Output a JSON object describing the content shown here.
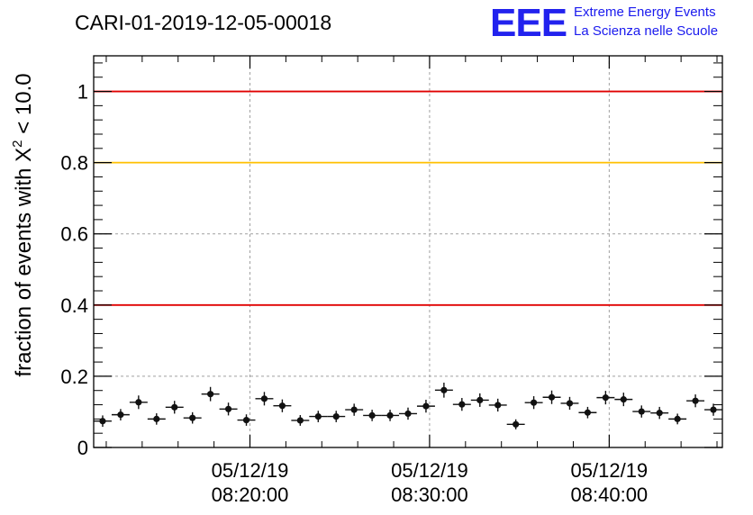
{
  "colors": {
    "red_line": "#e00000",
    "yellow_line": "#ffc000",
    "grid": "#a0a0a0",
    "marker": "#111111",
    "logo": "#2222ee"
  },
  "logo": {
    "mark": "EEE",
    "line1": "Extreme Energy Events",
    "line2": "La Scienza nelle Scuole"
  },
  "chart_data": {
    "type": "scatter",
    "title": "CARI-01-2019-12-05-00018",
    "ylabel_parts": {
      "prefix": "fraction of events with ",
      "chi": "X",
      "exponent": "2",
      "suffix": " < 10.0"
    },
    "xlabel": "",
    "ylim": [
      0,
      1.1
    ],
    "yticks": [
      0,
      0.2,
      0.4,
      0.6,
      0.8,
      1
    ],
    "ytick_labels": [
      "0",
      "0.2",
      "0.4",
      "0.6",
      "0.8",
      "1"
    ],
    "x_range_minutes": [
      11.3,
      46.3
    ],
    "x_ticks": [
      {
        "minutes": 20,
        "date": "05/12/19",
        "time": "08:20:00"
      },
      {
        "minutes": 30,
        "date": "05/12/19",
        "time": "08:30:00"
      },
      {
        "minutes": 40,
        "date": "05/12/19",
        "time": "08:40:00"
      }
    ],
    "x_unit": "minutes after 08:00:00 on 05/12/19",
    "reference_lines": [
      {
        "y": 1.0,
        "color": "red"
      },
      {
        "y": 0.8,
        "color": "yellow"
      },
      {
        "y": 0.4,
        "color": "red"
      }
    ],
    "grid": true,
    "bin_width_minutes": 1.0,
    "series": [
      {
        "name": "fraction",
        "x": [
          11.8,
          12.8,
          13.8,
          14.8,
          15.8,
          16.8,
          17.8,
          18.8,
          19.8,
          20.8,
          21.8,
          22.8,
          23.8,
          24.8,
          25.8,
          26.8,
          27.8,
          28.8,
          29.8,
          30.8,
          31.8,
          32.8,
          33.8,
          34.8,
          35.8,
          36.8,
          37.8,
          38.8,
          39.8,
          40.8,
          41.8,
          42.8,
          43.8,
          44.8,
          45.8
        ],
        "y": [
          0.074,
          0.092,
          0.127,
          0.08,
          0.113,
          0.083,
          0.15,
          0.108,
          0.077,
          0.137,
          0.117,
          0.076,
          0.087,
          0.087,
          0.106,
          0.09,
          0.09,
          0.095,
          0.116,
          0.161,
          0.121,
          0.133,
          0.119,
          0.065,
          0.126,
          0.141,
          0.124,
          0.098,
          0.14,
          0.135,
          0.101,
          0.097,
          0.08,
          0.131,
          0.106
        ],
        "err": [
          0.016,
          0.016,
          0.019,
          0.016,
          0.018,
          0.016,
          0.02,
          0.018,
          0.016,
          0.019,
          0.018,
          0.015,
          0.016,
          0.016,
          0.017,
          0.016,
          0.016,
          0.017,
          0.018,
          0.021,
          0.018,
          0.019,
          0.018,
          0.014,
          0.018,
          0.019,
          0.018,
          0.016,
          0.019,
          0.019,
          0.017,
          0.017,
          0.015,
          0.018,
          0.017
        ]
      }
    ]
  }
}
